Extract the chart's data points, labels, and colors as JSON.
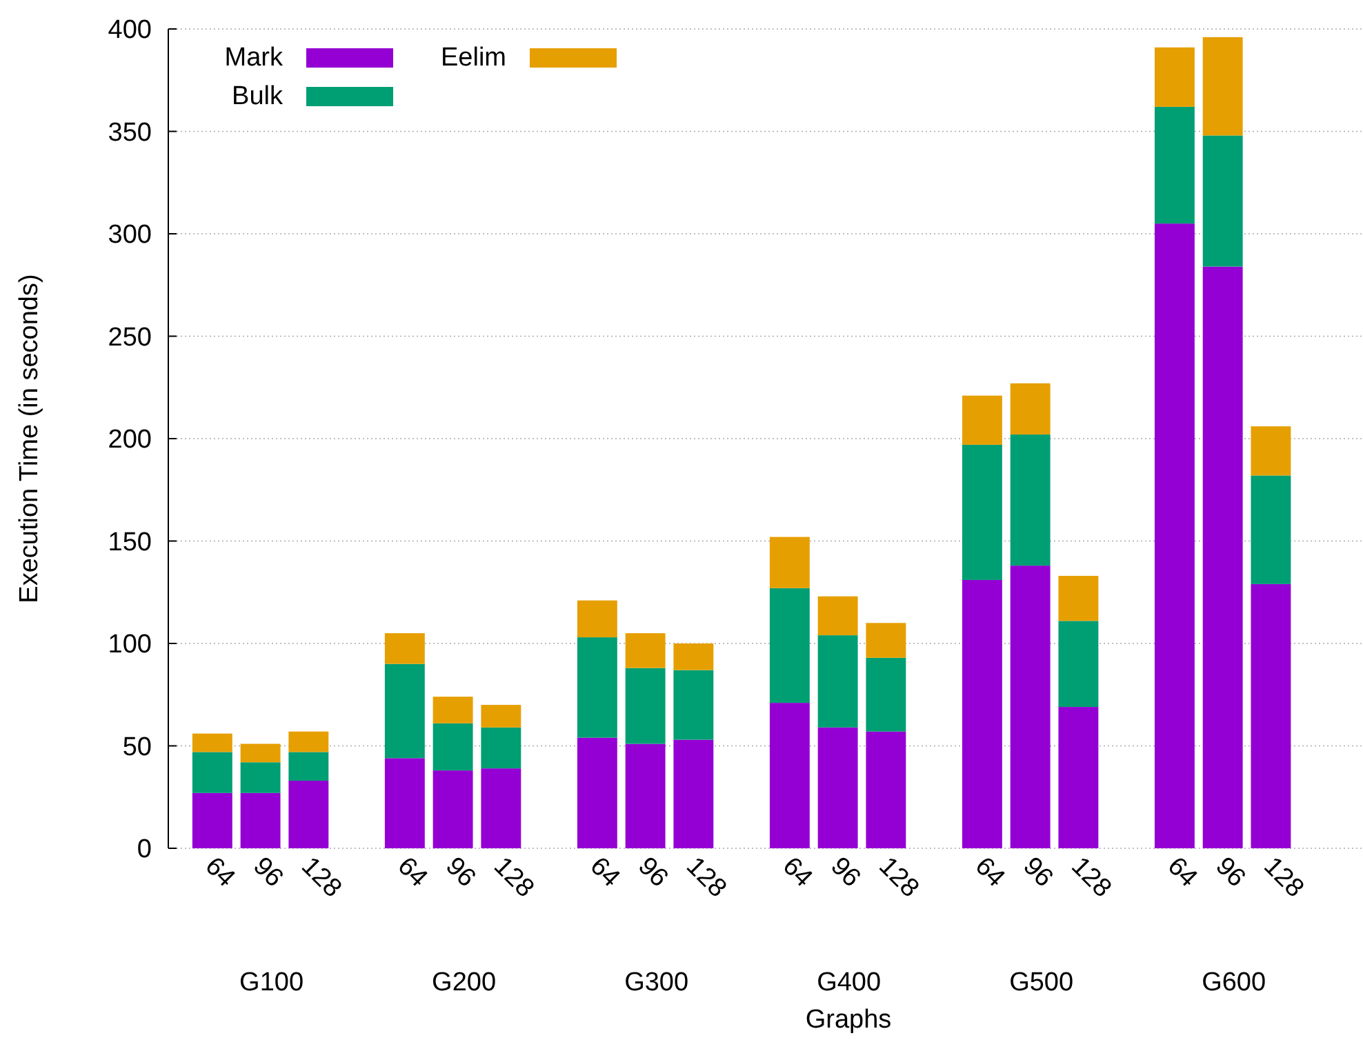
{
  "chart_data": {
    "type": "bar",
    "stacked": true,
    "xlabel": "Graphs",
    "ylabel": "Execution Time (in seconds)",
    "categories": [
      "64",
      "96",
      "128",
      null,
      "64",
      "96",
      "128",
      null,
      "64",
      "96",
      "128",
      null,
      "64",
      "96",
      "128",
      null,
      "64",
      "96",
      "128",
      null,
      "64",
      "96",
      "128",
      null
    ],
    "series": [
      {
        "name": "Mark",
        "color": "#9400d3",
        "values": [
          27,
          27,
          33,
          null,
          44,
          38,
          39,
          null,
          54,
          51,
          53,
          null,
          71,
          59,
          57,
          null,
          131,
          138,
          69,
          null,
          305,
          284,
          129,
          null
        ]
      },
      {
        "name": "Bulk",
        "color": "#009e73",
        "values": [
          20,
          15,
          14,
          null,
          46,
          23,
          20,
          null,
          49,
          37,
          34,
          null,
          56,
          45,
          36,
          null,
          66,
          64,
          42,
          null,
          57,
          64,
          53,
          null
        ]
      },
      {
        "name": "Eelim",
        "color": "#e69f00",
        "values": [
          9,
          9,
          10,
          null,
          15,
          13,
          11,
          null,
          18,
          17,
          13,
          null,
          25,
          19,
          17,
          null,
          24,
          25,
          22,
          null,
          29,
          48,
          24,
          null
        ]
      }
    ],
    "annotations": [
      "G100",
      "G200",
      "G300",
      "G400",
      "G500",
      "G600"
    ],
    "ylim": [
      0,
      400
    ],
    "yticks": [
      0,
      50,
      100,
      150,
      200,
      250,
      300,
      350,
      400
    ],
    "grid": "y",
    "legend": "top left"
  }
}
